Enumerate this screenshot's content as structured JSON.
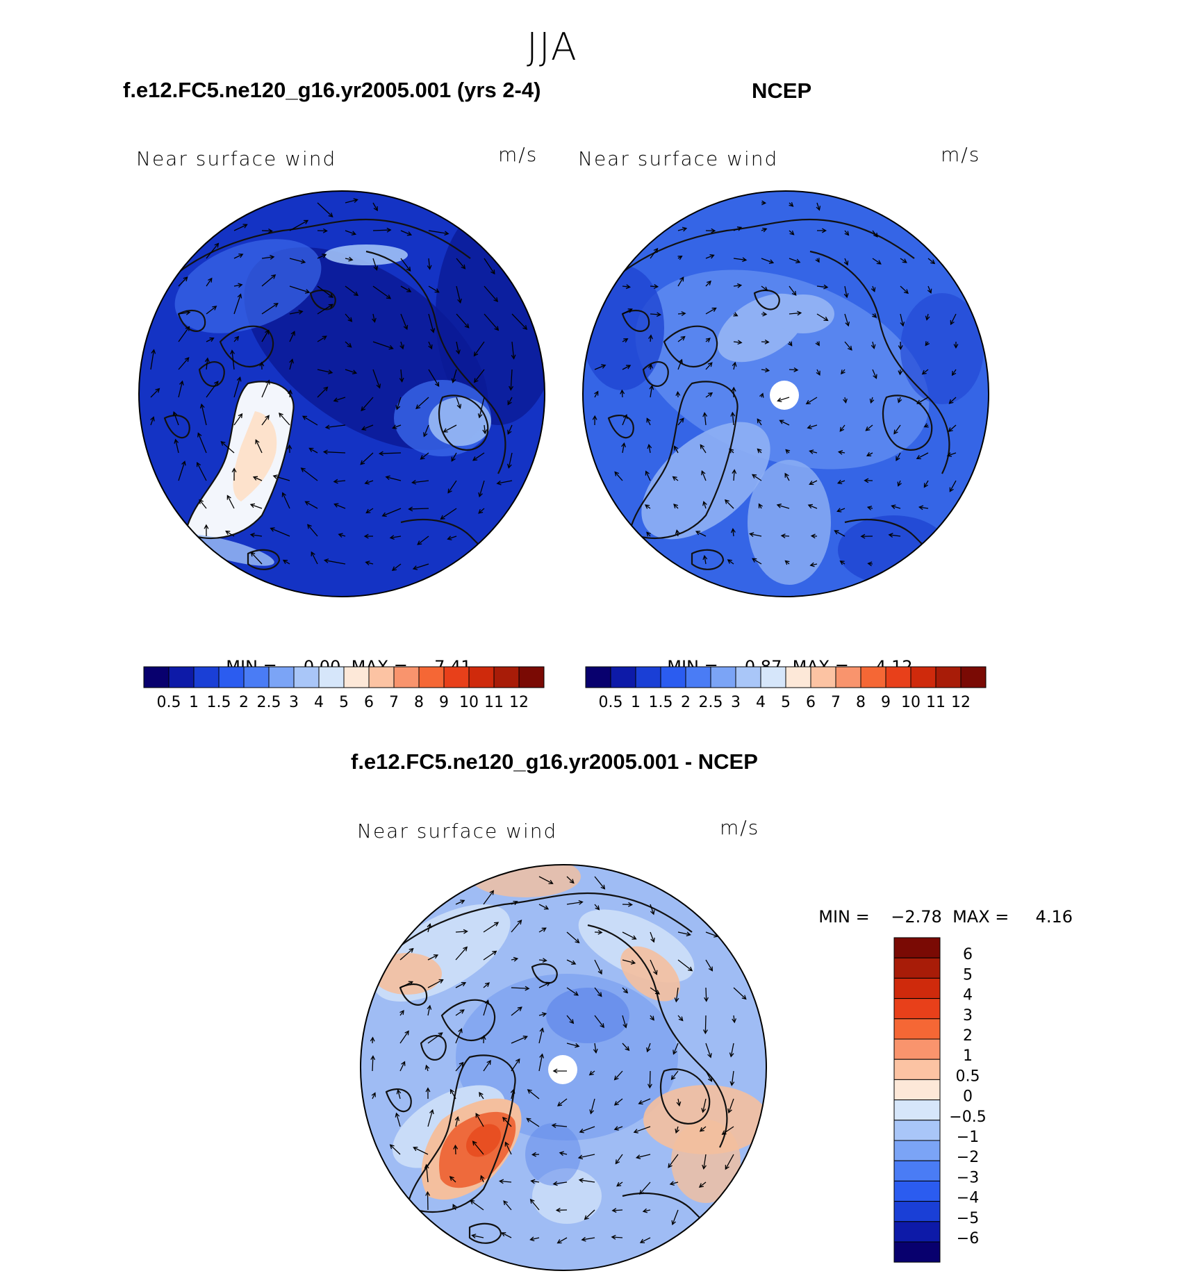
{
  "season": "JJA",
  "panels": {
    "model": {
      "title": "f.e12.FC5.ne120_g16.yr2005.001 (yrs 2-4)",
      "variable": "Near surface wind",
      "units": "m/s",
      "stats": {
        "min_label": "MIN =",
        "min": "0.00",
        "max_label": "MAX =",
        "max": "7.41"
      }
    },
    "obs": {
      "title": "NCEP",
      "variable": "Near surface wind",
      "units": "m/s",
      "stats": {
        "min_label": "MIN =",
        "min": "0.87",
        "max_label": "MAX =",
        "max": "4.12"
      }
    },
    "diff": {
      "title": "f.e12.FC5.ne120_g16.yr2005.001 - NCEP",
      "variable": "Near surface wind",
      "units": "m/s",
      "stats": {
        "min_label": "MIN =",
        "min": "−2.78",
        "max_label": "MAX =",
        "max": "4.16"
      }
    }
  },
  "colorbars": {
    "abs": {
      "colors": [
        "#08006e",
        "#0d1aa8",
        "#1a3fd6",
        "#2b5cf0",
        "#4a7cf5",
        "#7ba4f6",
        "#a9c6f8",
        "#d6e6fa",
        "#fde8d8",
        "#fcc3a3",
        "#f9946d",
        "#f56735",
        "#e8401a",
        "#cf2a0c",
        "#a81c08",
        "#7a0a04"
      ],
      "labels": [
        "0.5",
        "1",
        "1.5",
        "2",
        "2.5",
        "3",
        "4",
        "5",
        "6",
        "7",
        "8",
        "9",
        "10",
        "11",
        "12"
      ]
    },
    "diff": {
      "colors": [
        "#7a0a04",
        "#a81c08",
        "#cf2a0c",
        "#e8401a",
        "#f56735",
        "#f9946d",
        "#fcc3a3",
        "#fde8d8",
        "#d6e6fa",
        "#a9c6f8",
        "#7ba4f6",
        "#4a7cf5",
        "#2b5cf0",
        "#1a3fd6",
        "#0d1aa8",
        "#08006e"
      ],
      "labels": [
        "6",
        "5",
        "4",
        "3",
        "2",
        "1",
        "0.5",
        "0",
        "−0.5",
        "−1",
        "−2",
        "−3",
        "−4",
        "−5",
        "−6"
      ]
    }
  },
  "map_colors": {
    "model_base": "#1433c4",
    "model_dark": "#0a1a96",
    "model_light": "#3a68ea",
    "model_pale": "#9fc0f6",
    "model_white": "#f3f6fc",
    "model_warm": "#fde2cc",
    "obs_base": "#3565e6",
    "obs_mid": "#5c88f0",
    "obs_light": "#8fb0f4",
    "obs_dark": "#1f45d2",
    "diff_base": "#9fbcf4",
    "diff_light": "#c9dcf8",
    "diff_mid": "#7ea2f0",
    "diff_blue": "#5f88ea",
    "diff_warm": "#f4bf9e",
    "diff_red": "#ee6a3c",
    "diff_deep": "#e84f22",
    "coast": "#111111"
  }
}
